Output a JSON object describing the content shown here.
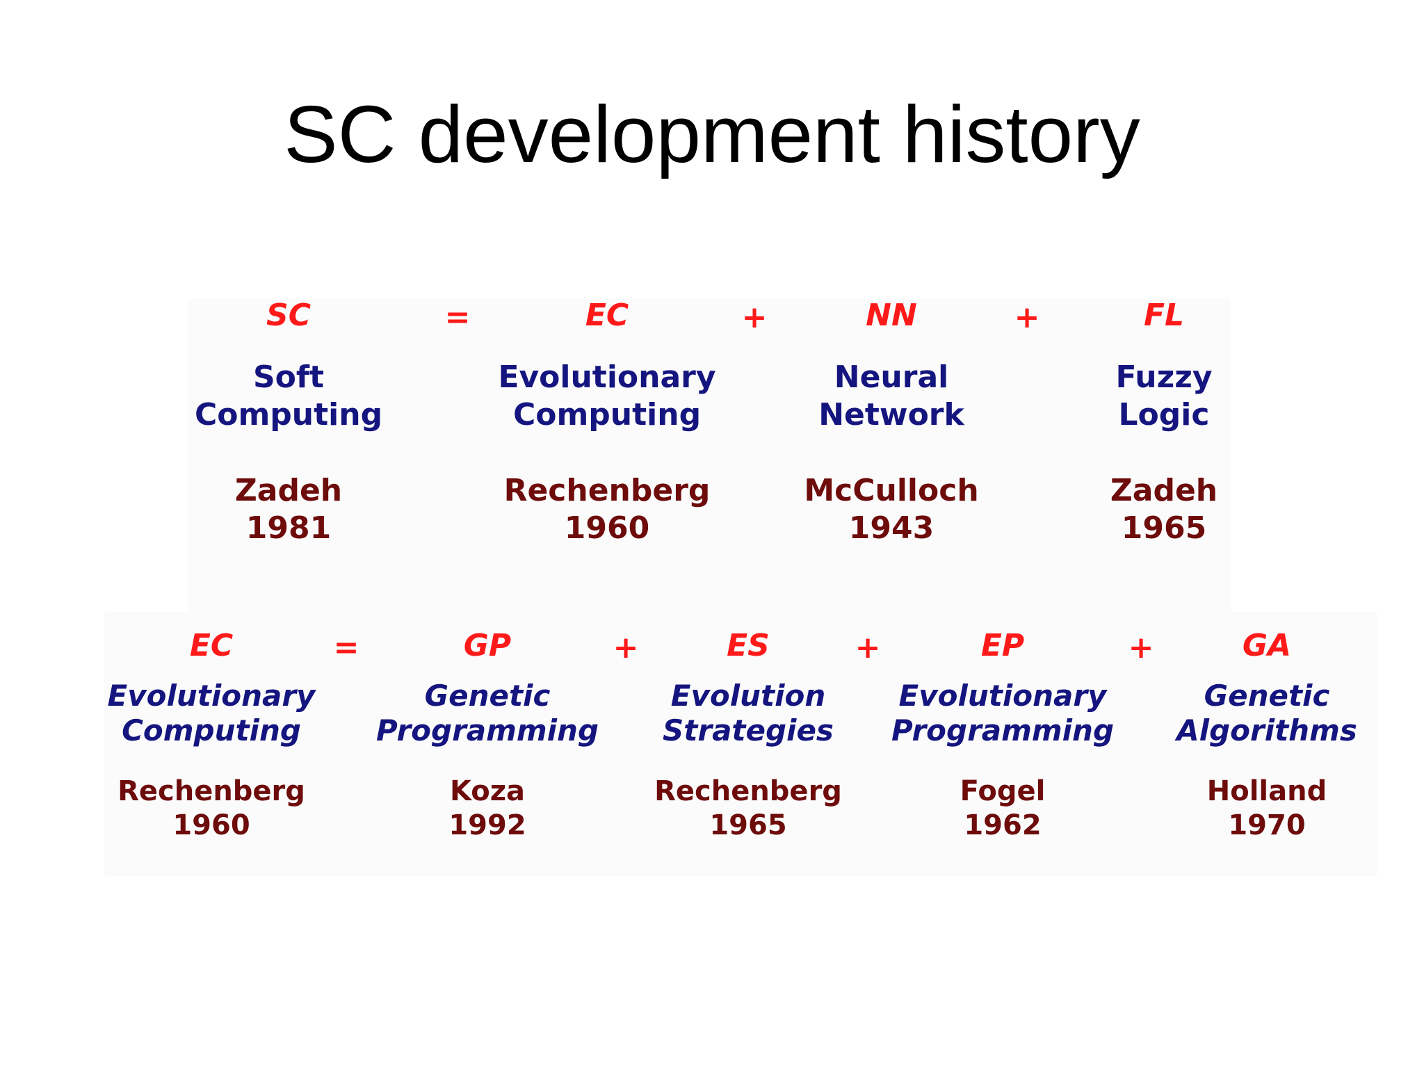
{
  "title": "SC development history",
  "colors": {
    "abbreviation": "#ff1a1a",
    "name": "#151580",
    "person": "#6e0c0c",
    "title": "#000000"
  },
  "row1": {
    "operators": [
      "=",
      "+",
      "+"
    ],
    "items": [
      {
        "abbr": "SC",
        "name": [
          "Soft",
          "Computing"
        ],
        "person": "Zadeh",
        "year": "1981"
      },
      {
        "abbr": "EC",
        "name": [
          "Evolutionary",
          "Computing"
        ],
        "person": "Rechenberg",
        "year": "1960"
      },
      {
        "abbr": "NN",
        "name": [
          "Neural",
          "Network"
        ],
        "person": "McCulloch",
        "year": "1943"
      },
      {
        "abbr": "FL",
        "name": [
          "Fuzzy",
          "Logic"
        ],
        "person": "Zadeh",
        "year": "1965"
      }
    ]
  },
  "row2": {
    "operators": [
      "=",
      "+",
      "+",
      "+"
    ],
    "items": [
      {
        "abbr": "EC",
        "name": [
          "Evolutionary",
          "Computing"
        ],
        "person": "Rechenberg",
        "year": "1960"
      },
      {
        "abbr": "GP",
        "name": [
          "Genetic",
          "Programming"
        ],
        "person": "Koza",
        "year": "1992"
      },
      {
        "abbr": "ES",
        "name": [
          "Evolution",
          "Strategies"
        ],
        "person": "Rechenberg",
        "year": "1965"
      },
      {
        "abbr": "EP",
        "name": [
          "Evolutionary",
          "Programming"
        ],
        "person": "Fogel",
        "year": "1962"
      },
      {
        "abbr": "GA",
        "name": [
          "Genetic",
          "Algorithms"
        ],
        "person": "Holland",
        "year": "1970"
      }
    ]
  }
}
